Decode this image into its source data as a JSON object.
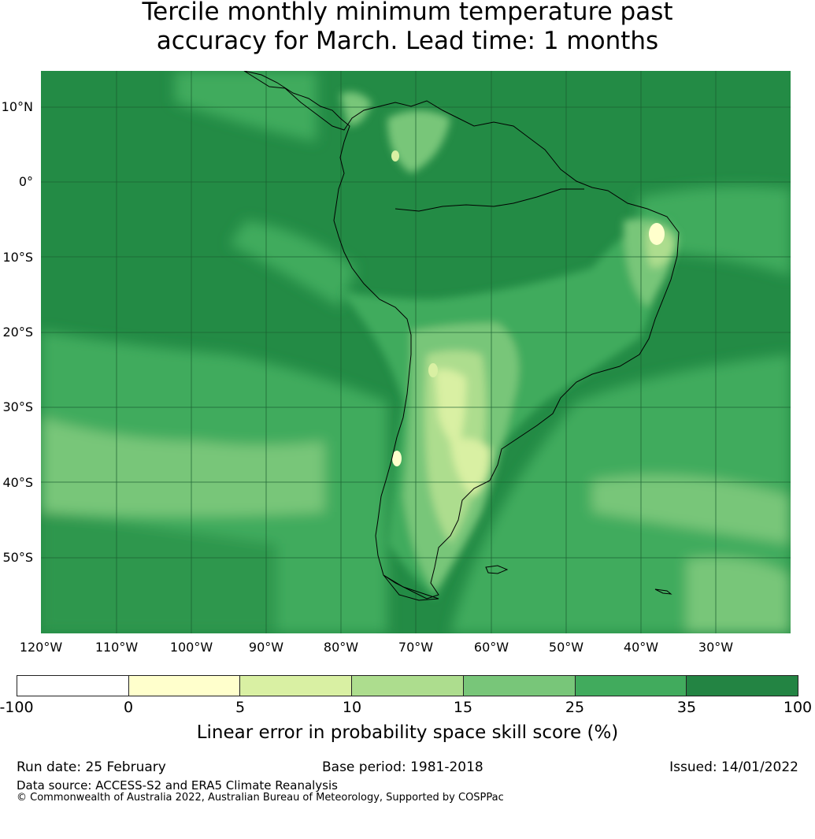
{
  "title": {
    "line1": "Tercile monthly minimum temperature past",
    "line2": "accuracy for March. Lead time: 1 months"
  },
  "map": {
    "lat_labels": [
      "10°N",
      "0°",
      "10°S",
      "20°S",
      "30°S",
      "40°S",
      "50°S"
    ],
    "lon_labels": [
      "120°W",
      "110°W",
      "100°W",
      "90°W",
      "80°W",
      "70°W",
      "60°W",
      "50°W",
      "40°W",
      "30°W"
    ],
    "ocean_background_color": "#238b45",
    "coastline_color": "#000000",
    "gridline_color": "#1a5e30"
  },
  "colorbar": {
    "ticks": [
      "-100",
      "0",
      "5",
      "10",
      "15",
      "25",
      "35",
      "100"
    ],
    "colors": [
      "#ffffff",
      "#ffffcc",
      "#d9f0a3",
      "#addd8e",
      "#78c679",
      "#41ab5d",
      "#238443"
    ],
    "label": "Linear error in probability space skill score (%)"
  },
  "footer": {
    "run_date": "Run date: 25 February",
    "base_period": "Base period: 1981-2018",
    "issued": "Issued: 14/01/2022",
    "data_source": "Data source: ACCESS-S2 and ERA5 Climate Reanalysis",
    "copyright": "© Commonwealth of Australia 2022, Australian Bureau of Meteorology, Supported by COSPPac"
  }
}
